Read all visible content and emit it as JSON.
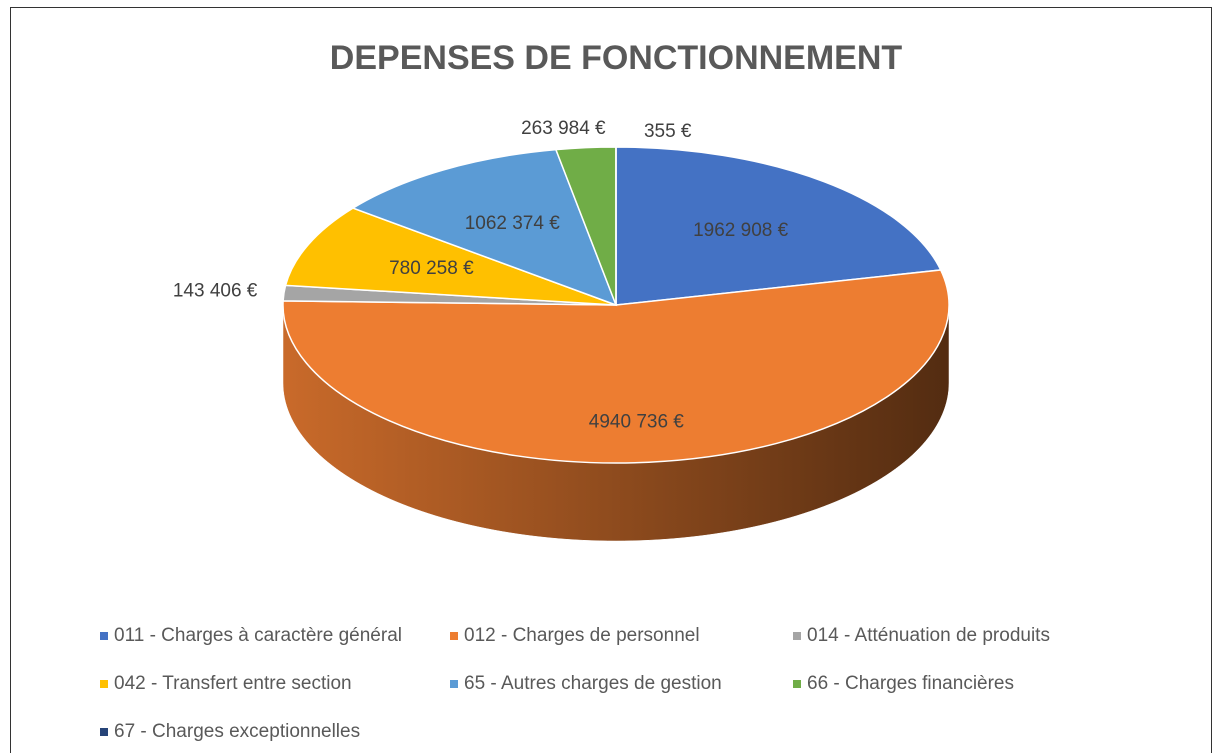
{
  "chart_data": {
    "type": "pie",
    "title": "DEPENSES DE FONCTIONNEMENT",
    "categories": [
      "011 - Charges à caractère général",
      "012 - Charges de personnel",
      "014 - Atténuation de produits",
      "042 - Transfert entre section",
      "65 - Autres charges de gestion",
      "66 - Charges financières",
      "67 - Charges exceptionnelles"
    ],
    "values": [
      1962908,
      4940736,
      143406,
      780258,
      1062374,
      263984,
      355
    ],
    "value_labels": [
      "1962 908 €",
      "4940 736 €",
      "143 406 €",
      "780 258 €",
      "1062 374 €",
      "263 984 €",
      "355 €"
    ],
    "colors": [
      "#4472c4",
      "#ed7d31",
      "#a5a5a5",
      "#ffc000",
      "#5b9bd5",
      "#70ad47",
      "#264478"
    ],
    "legend": "bottom"
  }
}
